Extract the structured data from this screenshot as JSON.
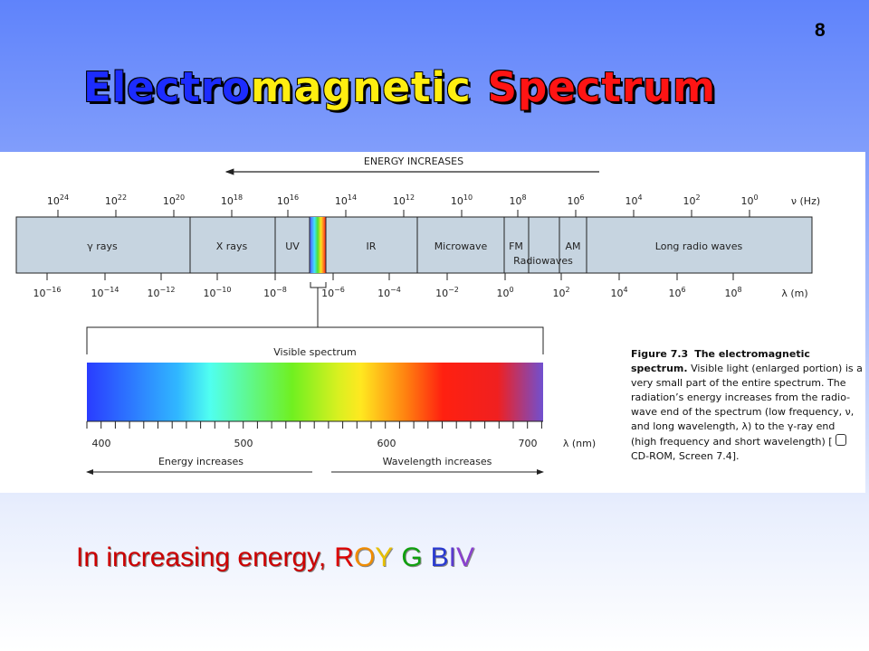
{
  "slide_number": "8",
  "title": {
    "parts": [
      {
        "text": "Electro",
        "color": "#1c2cff"
      },
      {
        "text": "magnetic",
        "color": "#ffee10"
      },
      {
        "text": "Spectrum",
        "color": "#ff1414"
      }
    ]
  },
  "diagram": {
    "energy_arrow_label": "ENERGY INCREASES",
    "frequency_axis": {
      "ticks": [
        {
          "base": "10",
          "exponent": "24"
        },
        {
          "base": "10",
          "exponent": "22"
        },
        {
          "base": "10",
          "exponent": "20"
        },
        {
          "base": "10",
          "exponent": "18"
        },
        {
          "base": "10",
          "exponent": "16"
        },
        {
          "base": "10",
          "exponent": "14"
        },
        {
          "base": "10",
          "exponent": "12"
        },
        {
          "base": "10",
          "exponent": "10"
        },
        {
          "base": "10",
          "exponent": "8"
        },
        {
          "base": "10",
          "exponent": "6"
        },
        {
          "base": "10",
          "exponent": "4"
        },
        {
          "base": "10",
          "exponent": "2"
        },
        {
          "base": "10",
          "exponent": "0"
        }
      ],
      "unit": "ν (Hz)"
    },
    "bands": [
      {
        "label": "γ rays"
      },
      {
        "label": "X rays"
      },
      {
        "label": "UV"
      },
      {
        "label": "IR"
      },
      {
        "label": "Microwave"
      },
      {
        "label": "FM"
      },
      {
        "label": "AM"
      },
      {
        "label": "Long radio waves"
      }
    ],
    "radiowaves_label": "Radiowaves",
    "wavelength_axis": {
      "ticks": [
        {
          "base": "10",
          "exponent": "−16"
        },
        {
          "base": "10",
          "exponent": "−14"
        },
        {
          "base": "10",
          "exponent": "−12"
        },
        {
          "base": "10",
          "exponent": "−10"
        },
        {
          "base": "10",
          "exponent": "−8"
        },
        {
          "base": "10",
          "exponent": "−6"
        },
        {
          "base": "10",
          "exponent": "−4"
        },
        {
          "base": "10",
          "exponent": "−2"
        },
        {
          "base": "10",
          "exponent": "0"
        },
        {
          "base": "10",
          "exponent": "2"
        },
        {
          "base": "10",
          "exponent": "4"
        },
        {
          "base": "10",
          "exponent": "6"
        },
        {
          "base": "10",
          "exponent": "8"
        }
      ],
      "unit": "λ (m)"
    },
    "visible": {
      "title": "Visible spectrum",
      "ticks": [
        400,
        500,
        600,
        700
      ],
      "unit": "λ (nm)",
      "energy_label": "Energy increases",
      "wavelength_label": "Wavelength increases"
    }
  },
  "caption": {
    "figure": "Figure 7.3",
    "heading": "The electromagnetic spectrum.",
    "body": "Visible light (enlarged portion) is a very small part of the entire spectrum. The radiation’s energy increases from the radio-wave end of the spectrum (low frequency, ν, and long wavelength, λ) to the γ-ray end (high frequency and short wavelength) [",
    "reference": "CD-ROM, Screen 7.4]."
  },
  "footer": {
    "prefix": "In increasing energy,",
    "words": [
      [
        {
          "text": "R",
          "color": "#dd0000"
        },
        {
          "text": "O",
          "color": "#f08c00"
        },
        {
          "text": "Y",
          "color": "#e8c000"
        }
      ],
      [
        {
          "text": "G",
          "color": "#10a010"
        }
      ],
      [
        {
          "text": "B",
          "color": "#2a3ad0"
        },
        {
          "text": "I",
          "color": "#5a3ad0"
        },
        {
          "text": "V",
          "color": "#8a40d0"
        }
      ]
    ]
  }
}
